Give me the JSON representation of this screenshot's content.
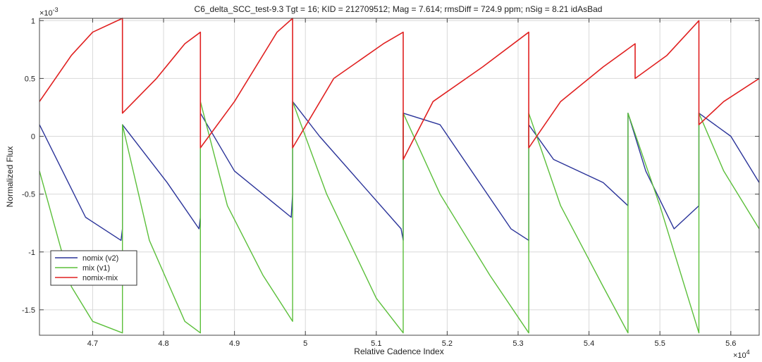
{
  "chart_data": {
    "type": "line",
    "title": "C6_delta_SCC_test-9.3 Tgt = 16; KID = 212709512; Mag = 7.614; rmsDiff = 724.9 ppm; nSig = 8.21 idAsBad",
    "xlabel": "Relative Cadence Index",
    "ylabel": "Normalized Flux",
    "x_exponent": "×10",
    "x_exponent_power": "4",
    "y_exponent": "×10",
    "y_exponent_power": "-3",
    "xlim": [
      46250,
      56400
    ],
    "ylim": [
      -0.00172,
      0.00102
    ],
    "xticks": [
      47000,
      48000,
      49000,
      50000,
      51000,
      52000,
      53000,
      54000,
      55000,
      56000
    ],
    "xtick_labels": [
      "4.7",
      "4.8",
      "4.9",
      "5",
      "5.1",
      "5.2",
      "5.3",
      "5.4",
      "5.5",
      "5.6"
    ],
    "yticks": [
      0.001,
      0.0005,
      0,
      -0.0005,
      -0.001,
      -0.0015
    ],
    "ytick_labels": [
      "1",
      "0.5",
      "0",
      "-0.5",
      "-1",
      "-1.5"
    ],
    "grid": true,
    "legend_position": "bottom-left",
    "series": [
      {
        "name": "nomix (v2)",
        "color": "#2a3399",
        "x": [
          46250,
          46900,
          47400,
          47420,
          47420,
          48050,
          48500,
          48520,
          48520,
          49000,
          49800,
          49820,
          49820,
          50200,
          51350,
          51380,
          51380,
          51900,
          52900,
          53150,
          53150,
          53500,
          54200,
          54550,
          54550,
          54800,
          55200,
          55550,
          55550,
          56000,
          56400
        ],
        "y": [
          0.0001,
          -0.0007,
          -0.0009,
          -0.0008,
          0.0001,
          -0.0004,
          -0.0008,
          -0.0007,
          0.0002,
          -0.0003,
          -0.0007,
          -0.0005,
          0.0003,
          0.0,
          -0.0008,
          -0.0009,
          0.0002,
          0.0001,
          -0.0008,
          -0.0009,
          0.0001,
          -0.0002,
          -0.0004,
          -0.0006,
          0.0002,
          -0.0003,
          -0.0008,
          -0.0006,
          0.0002,
          0.0,
          -0.0004
        ]
      },
      {
        "name": "mix (v1)",
        "color": "#5bbf3a",
        "x": [
          46250,
          46700,
          47000,
          47420,
          47420,
          47800,
          48300,
          48520,
          48520,
          48900,
          49400,
          49820,
          49820,
          50300,
          51000,
          51380,
          51380,
          51900,
          52600,
          53150,
          53150,
          53600,
          54200,
          54550,
          54550,
          55000,
          55400,
          55550,
          55550,
          55900,
          56400
        ],
        "y": [
          -0.0003,
          -0.0013,
          -0.0016,
          -0.0017,
          0.0001,
          -0.0009,
          -0.0016,
          -0.0017,
          0.0003,
          -0.0006,
          -0.0012,
          -0.0016,
          0.0003,
          -0.0005,
          -0.0014,
          -0.0017,
          0.0002,
          -0.0005,
          -0.0012,
          -0.0017,
          0.0002,
          -0.0006,
          -0.0013,
          -0.0017,
          0.0002,
          -0.0006,
          -0.0014,
          -0.0017,
          0.0002,
          -0.0003,
          -0.0008
        ]
      },
      {
        "name": "nomix-mix",
        "color": "#e02020",
        "x": [
          46250,
          46700,
          47000,
          47420,
          47420,
          47900,
          48300,
          48520,
          48520,
          49000,
          49600,
          49820,
          49820,
          50400,
          51100,
          51380,
          51380,
          51800,
          52500,
          53150,
          53150,
          53600,
          54200,
          54650,
          54650,
          55100,
          55550,
          55550,
          55900,
          56400
        ],
        "y": [
          0.0003,
          0.0007,
          0.0009,
          0.00105,
          0.0002,
          0.0005,
          0.0008,
          0.0009,
          -0.0001,
          0.0003,
          0.0009,
          0.00105,
          -0.0001,
          0.0005,
          0.0008,
          0.0009,
          -0.0002,
          0.0003,
          0.0006,
          0.0009,
          -0.0001,
          0.0003,
          0.0006,
          0.0008,
          0.0005,
          0.0007,
          0.001,
          0.0001,
          0.0003,
          0.0005
        ]
      }
    ]
  }
}
